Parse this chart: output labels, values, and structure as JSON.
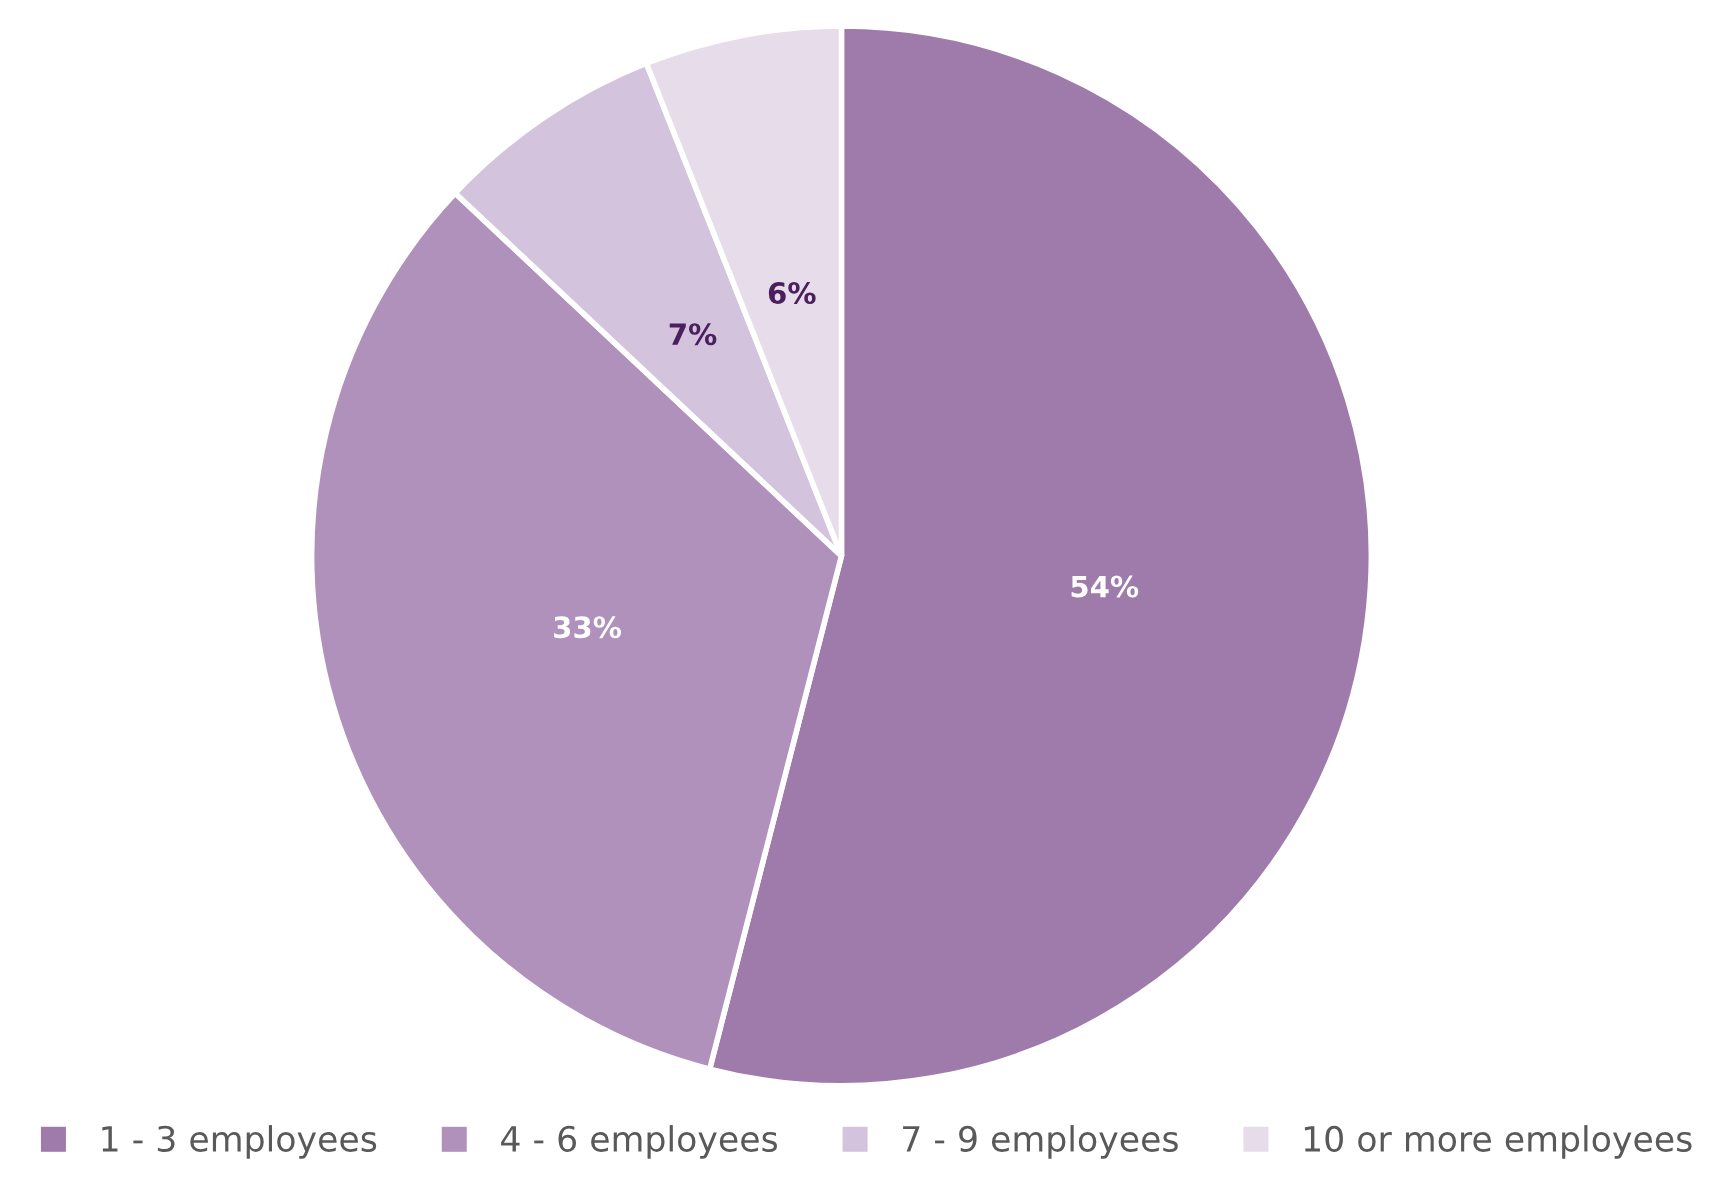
{
  "chart_data": {
    "type": "pie",
    "categories": [
      "1 - 3 employees",
      "4 - 6 employees",
      "7 - 9 employees",
      "10 or more employees"
    ],
    "values": [
      54,
      33,
      7,
      6
    ],
    "colors": [
      "#9e7bab",
      "#b091bb",
      "#d3c3dc",
      "#e6dcea"
    ],
    "value_labels": [
      "54%",
      "33%",
      "7%",
      "6%"
    ],
    "legend": "bottom"
  }
}
